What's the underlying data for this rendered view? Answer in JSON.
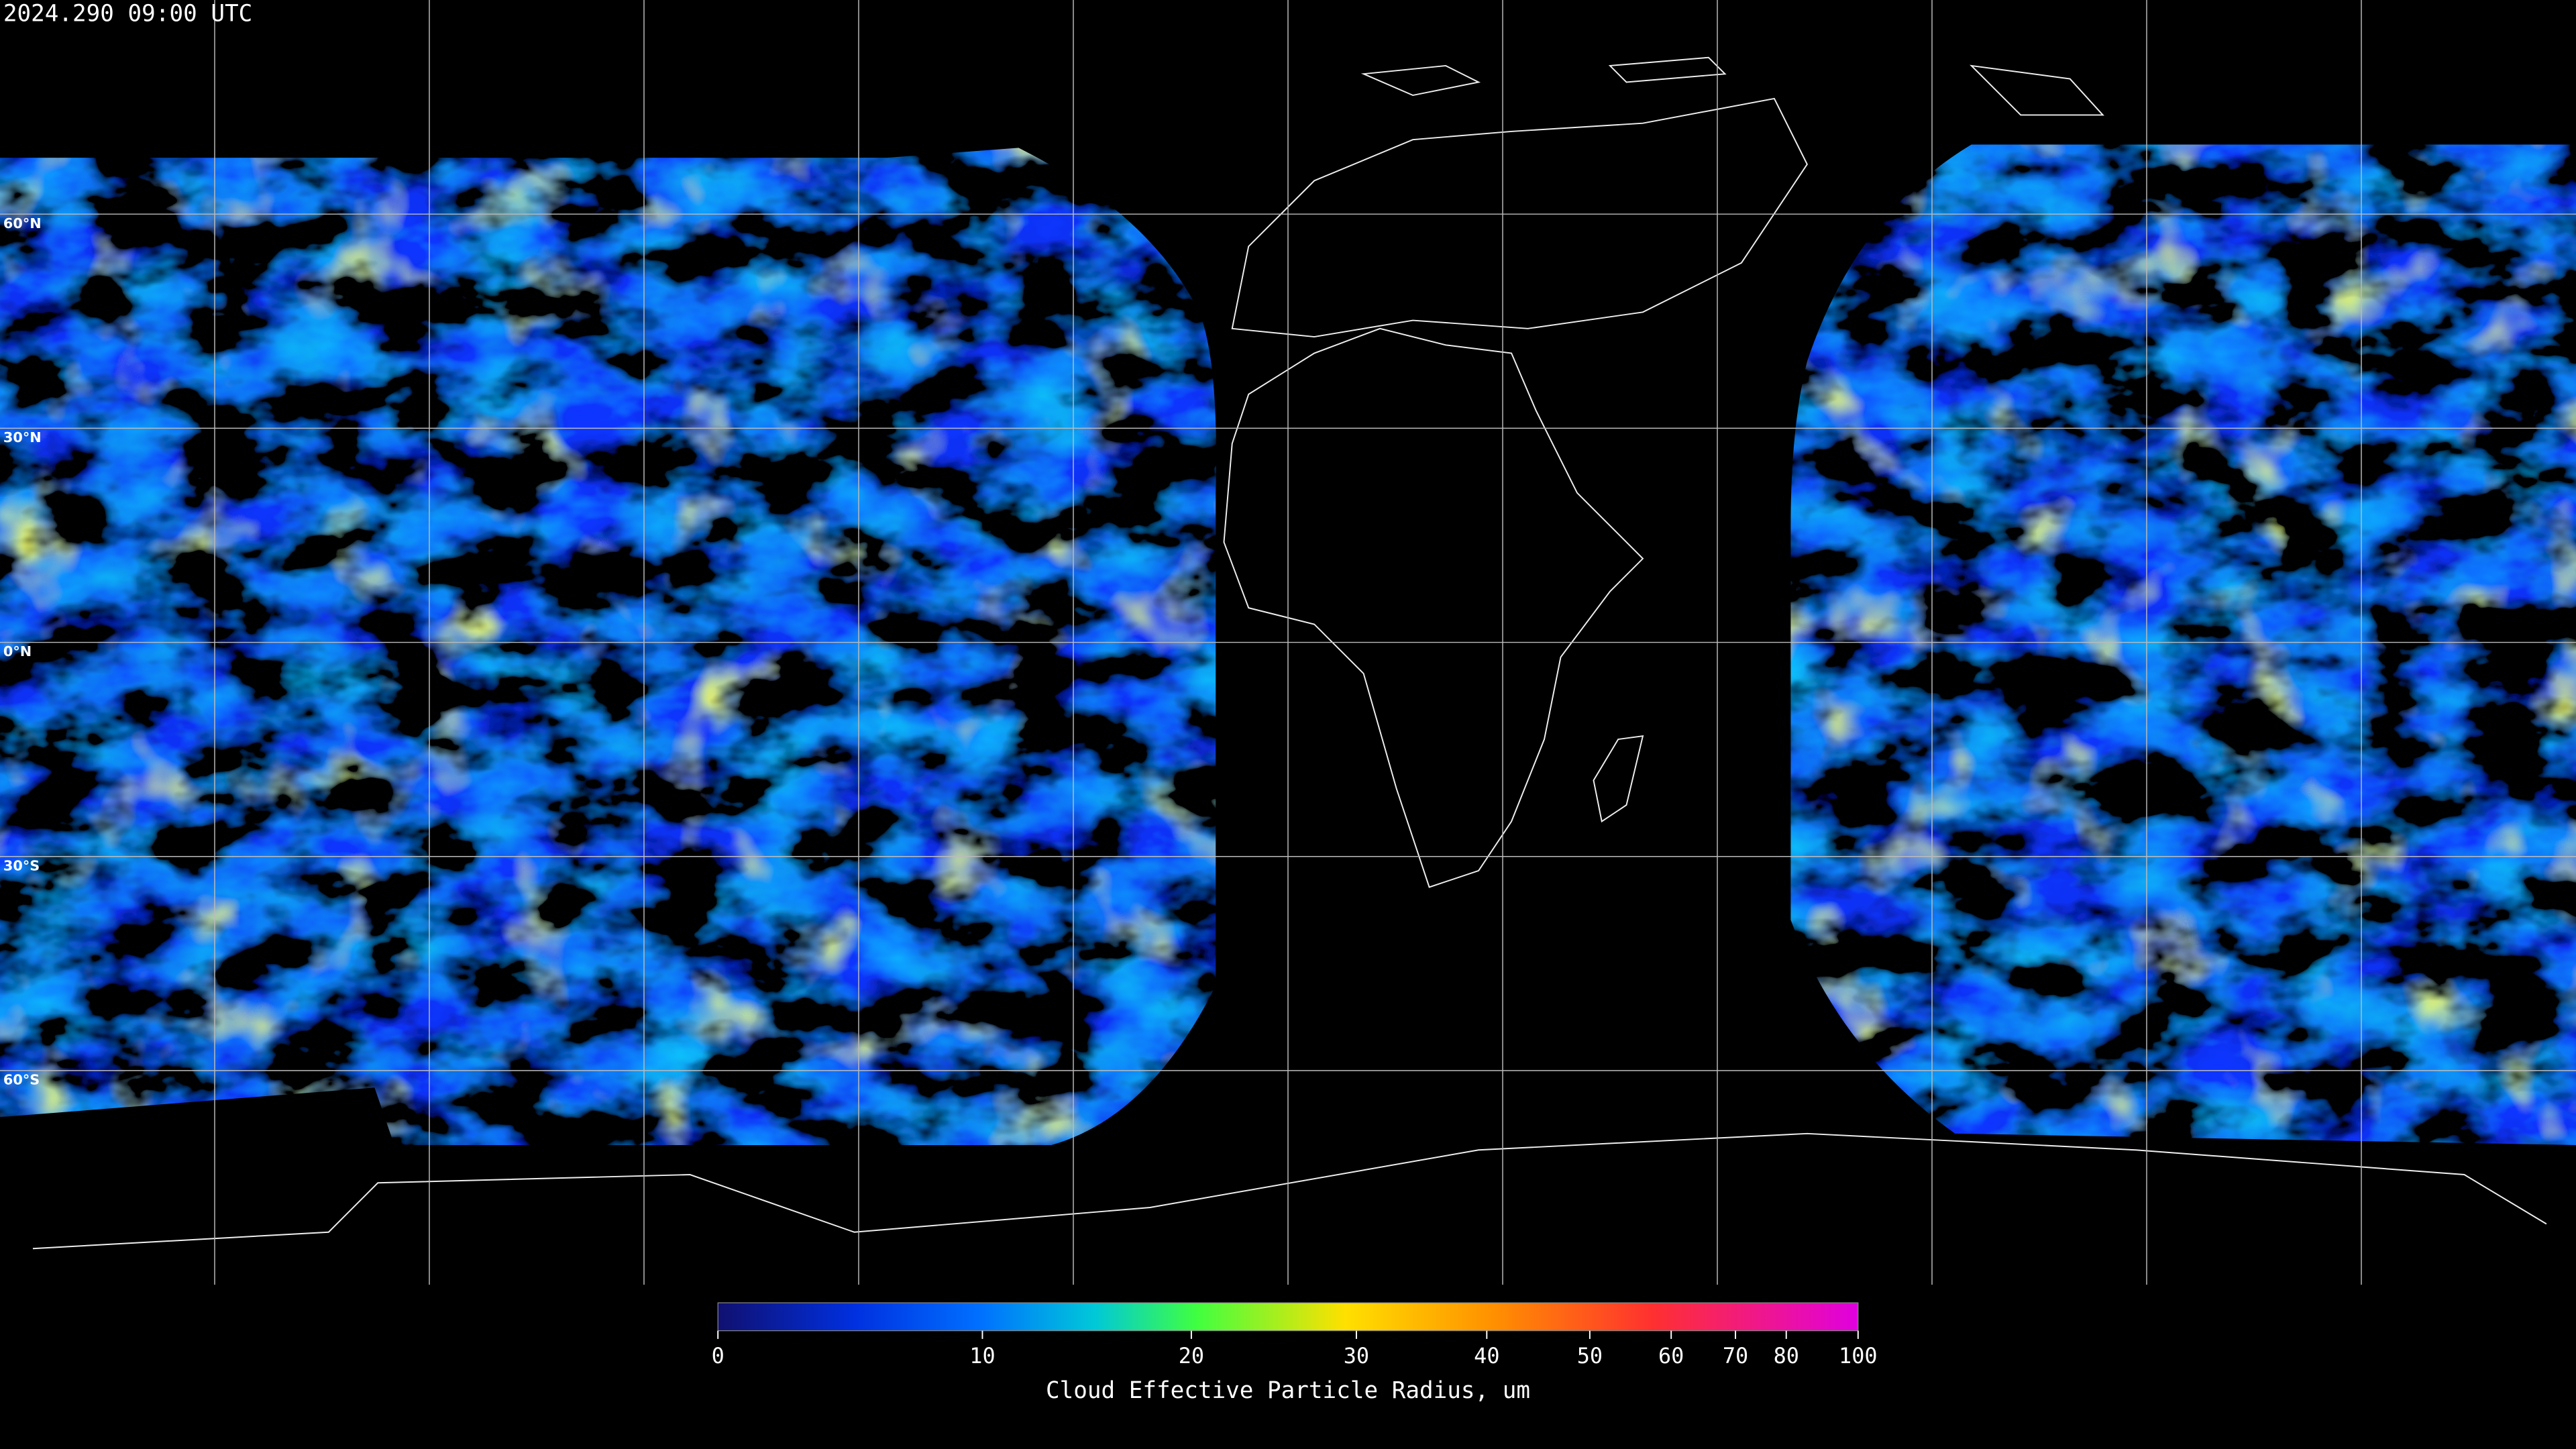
{
  "timestamp": "2024.290 09:00 UTC",
  "latitude_labels": [
    "60°N",
    "30°N",
    "0°N",
    "30°S",
    "60°S"
  ],
  "colorbar": {
    "title": "Cloud Effective Particle Radius, um",
    "range": [
      0,
      100
    ],
    "ticks": [
      0,
      10,
      20,
      30,
      40,
      50,
      60,
      70,
      80,
      100
    ]
  }
}
